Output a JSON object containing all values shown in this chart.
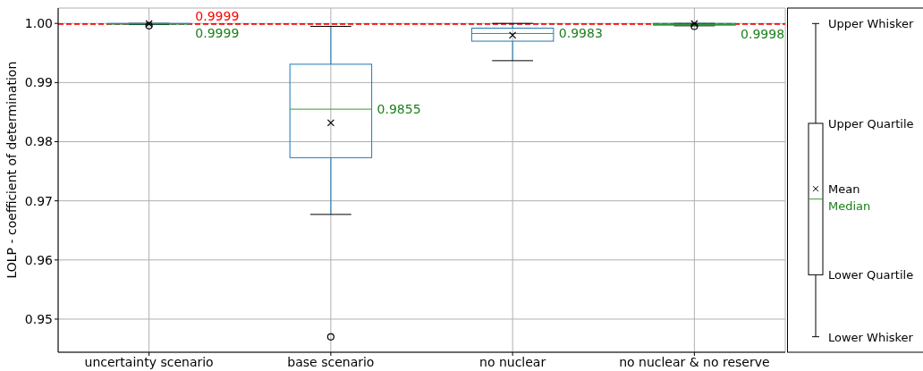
{
  "chart_data": {
    "type": "box",
    "ylabel": "LOLP - coefficient of determination",
    "categories": [
      "uncertainty scenario",
      "base scenario",
      "no nuclear",
      "no nuclear & no reserve"
    ],
    "color": "#1f77b4",
    "boxes": [
      {
        "low": 0.9998,
        "q1": 0.9999,
        "median": 0.9999,
        "q3": 1.0,
        "high": 1.0,
        "mean": 0.99995,
        "outliers": [
          0.9996
        ]
      },
      {
        "low": 0.9677,
        "q1": 0.9773,
        "median": 0.9855,
        "q3": 0.9931,
        "high": 0.9995,
        "mean": 0.9832,
        "outliers": [
          0.947
        ]
      },
      {
        "low": 0.9937,
        "q1": 0.997,
        "median": 0.9983,
        "q3": 0.9992,
        "high": 1.0,
        "mean": 0.998
      },
      {
        "low": 0.9996,
        "q1": 0.9997,
        "median": 0.9998,
        "q3": 1.0,
        "high": 1.0,
        "mean": 0.99995,
        "outliers": [
          0.9995
        ]
      }
    ],
    "ylim": [
      0.9444,
      1.0026
    ],
    "yticks": [
      0.95,
      0.96,
      0.97,
      0.98,
      0.99,
      {
        "value": 1,
        "label": "1.00"
      }
    ],
    "grid": true,
    "ref_lines": [
      {
        "axis": "y",
        "value": 0.9999,
        "label": "0.9999",
        "color": "#ff0000",
        "line_style": "dashed"
      }
    ],
    "annotations": [
      "0.9999",
      "0.9855",
      "0.9983",
      "0.9998",
      "Upper Whisker",
      "Upper Quartile",
      "Mean",
      "Median",
      "Lower Quartile",
      "Lower Whisker"
    ]
  }
}
